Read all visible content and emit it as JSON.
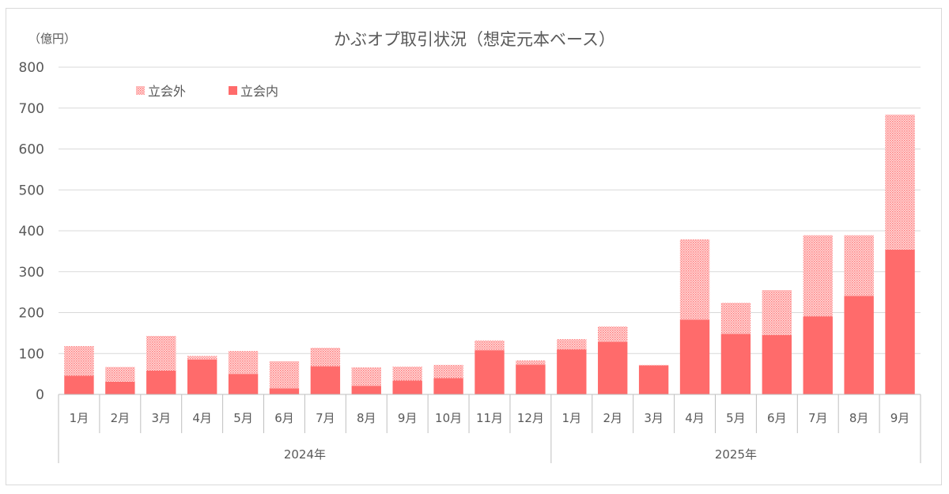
{
  "chart_data": {
    "type": "bar",
    "stacked": true,
    "title": "かぶオプ取引状況（想定元本ベース）",
    "unit_label": "（億円）",
    "ylim": [
      0,
      800
    ],
    "yticks": [
      0,
      100,
      200,
      300,
      400,
      500,
      600,
      700,
      800
    ],
    "grid": true,
    "legend_position": "top-left",
    "categories": [
      "1月",
      "2月",
      "3月",
      "4月",
      "5月",
      "6月",
      "7月",
      "8月",
      "9月",
      "10月",
      "11月",
      "12月",
      "1月",
      "2月",
      "3月",
      "4月",
      "5月",
      "6月",
      "7月",
      "8月",
      "9月"
    ],
    "groups": [
      {
        "label": "2024年",
        "count": 12
      },
      {
        "label": "2025年",
        "count": 9
      }
    ],
    "series": [
      {
        "name": "立会内",
        "color": "#ff6b6b",
        "pattern": "solid",
        "values": [
          46,
          31,
          58,
          85,
          50,
          15,
          69,
          21,
          34,
          40,
          108,
          73,
          110,
          129,
          71,
          183,
          148,
          145,
          191,
          241,
          354
        ]
      },
      {
        "name": "立会外",
        "color": "#ff6b6b",
        "pattern": "dotted",
        "values": [
          72,
          36,
          85,
          9,
          56,
          66,
          45,
          45,
          34,
          32,
          24,
          10,
          25,
          37,
          1,
          196,
          76,
          110,
          198,
          148,
          330
        ]
      }
    ]
  }
}
